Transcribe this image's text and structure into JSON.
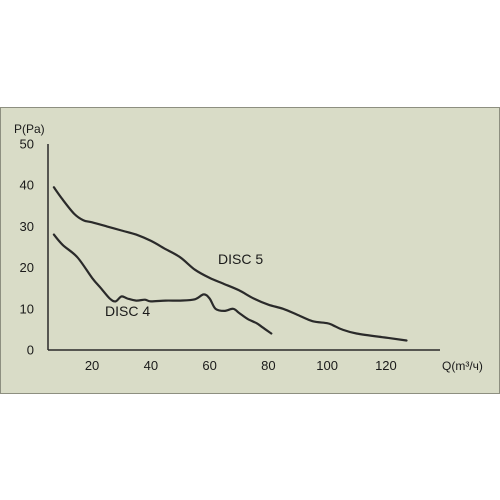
{
  "colors": {
    "panel_background": "#d9dcc7",
    "panel_border": "#8d8f80",
    "axis": "#2a2a2a",
    "series_line": "#2a2a2a"
  },
  "chart_data": {
    "type": "line",
    "xlabel": "Q(m³/ч)",
    "ylabel": "P(Pa)",
    "xlim": [
      5,
      135
    ],
    "ylim": [
      0,
      50
    ],
    "x_ticks": [
      "20",
      "40",
      "60",
      "80",
      "100",
      "120"
    ],
    "y_ticks": [
      "0",
      "10",
      "20",
      "30",
      "40",
      "50"
    ],
    "grid": false,
    "series": [
      {
        "name": "DISC 5",
        "x": [
          7,
          10,
          14,
          17,
          20,
          25,
          30,
          35,
          40,
          45,
          50,
          55,
          60,
          65,
          70,
          75,
          80,
          85,
          90,
          95,
          100,
          102,
          105,
          110,
          120,
          127
        ],
        "y": [
          39.5,
          36.5,
          33,
          31.5,
          31,
          30,
          29,
          28,
          26.5,
          24.5,
          22.5,
          19.5,
          17.5,
          16,
          14.5,
          12.5,
          11,
          10,
          8.5,
          7,
          6.5,
          6,
          5,
          4,
          3,
          2.3
        ]
      },
      {
        "name": "DISC 4",
        "x": [
          7,
          10,
          15,
          20,
          23,
          26,
          28,
          30,
          32,
          35,
          38,
          40,
          45,
          50,
          55,
          58,
          60,
          62,
          65,
          68,
          70,
          73,
          76,
          78,
          81
        ],
        "y": [
          28,
          25.5,
          22.5,
          17.5,
          15,
          12.5,
          11.8,
          13,
          12.5,
          12,
          12.2,
          11.8,
          12,
          12,
          12.3,
          13.5,
          12.5,
          10,
          9.5,
          10,
          9,
          7.5,
          6.5,
          5.5,
          4
        ]
      }
    ]
  }
}
